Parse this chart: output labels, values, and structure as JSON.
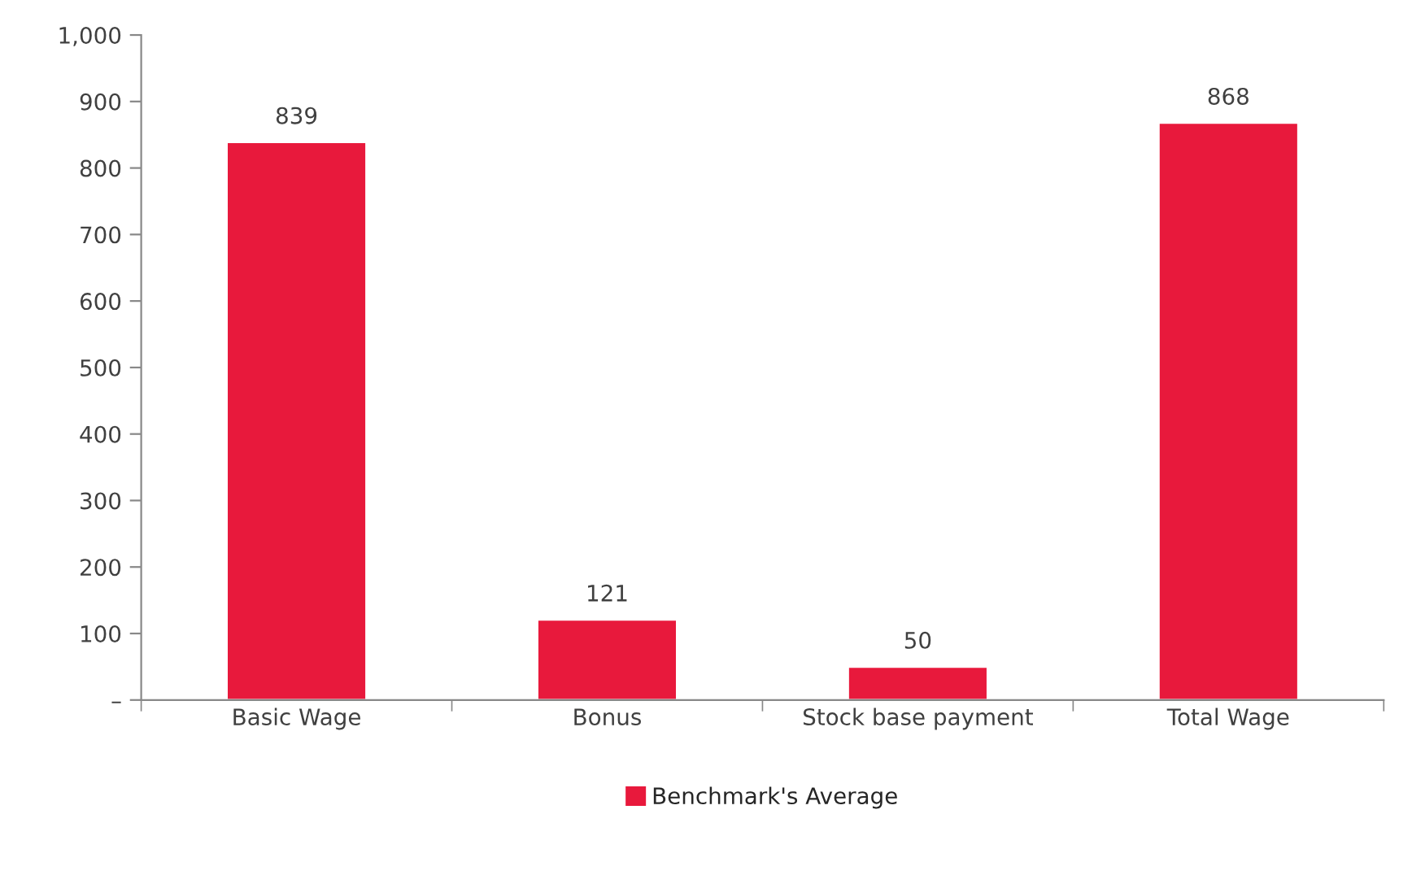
{
  "chart_data": {
    "type": "bar",
    "categories": [
      "Basic Wage",
      "Bonus",
      "Stock base payment",
      "Total Wage"
    ],
    "series": [
      {
        "name": "Benchmark's Average",
        "color": "#e8193c",
        "values": [
          839,
          121,
          50,
          868
        ]
      }
    ],
    "ylim": [
      0,
      1000
    ],
    "yticks": [
      {
        "value": 0,
        "label": "–"
      },
      100,
      200,
      300,
      400,
      500,
      600,
      700,
      800,
      900,
      {
        "value": 1000,
        "label": "1,000"
      }
    ],
    "data_labels": true,
    "grid": false,
    "legend": "bottom"
  }
}
